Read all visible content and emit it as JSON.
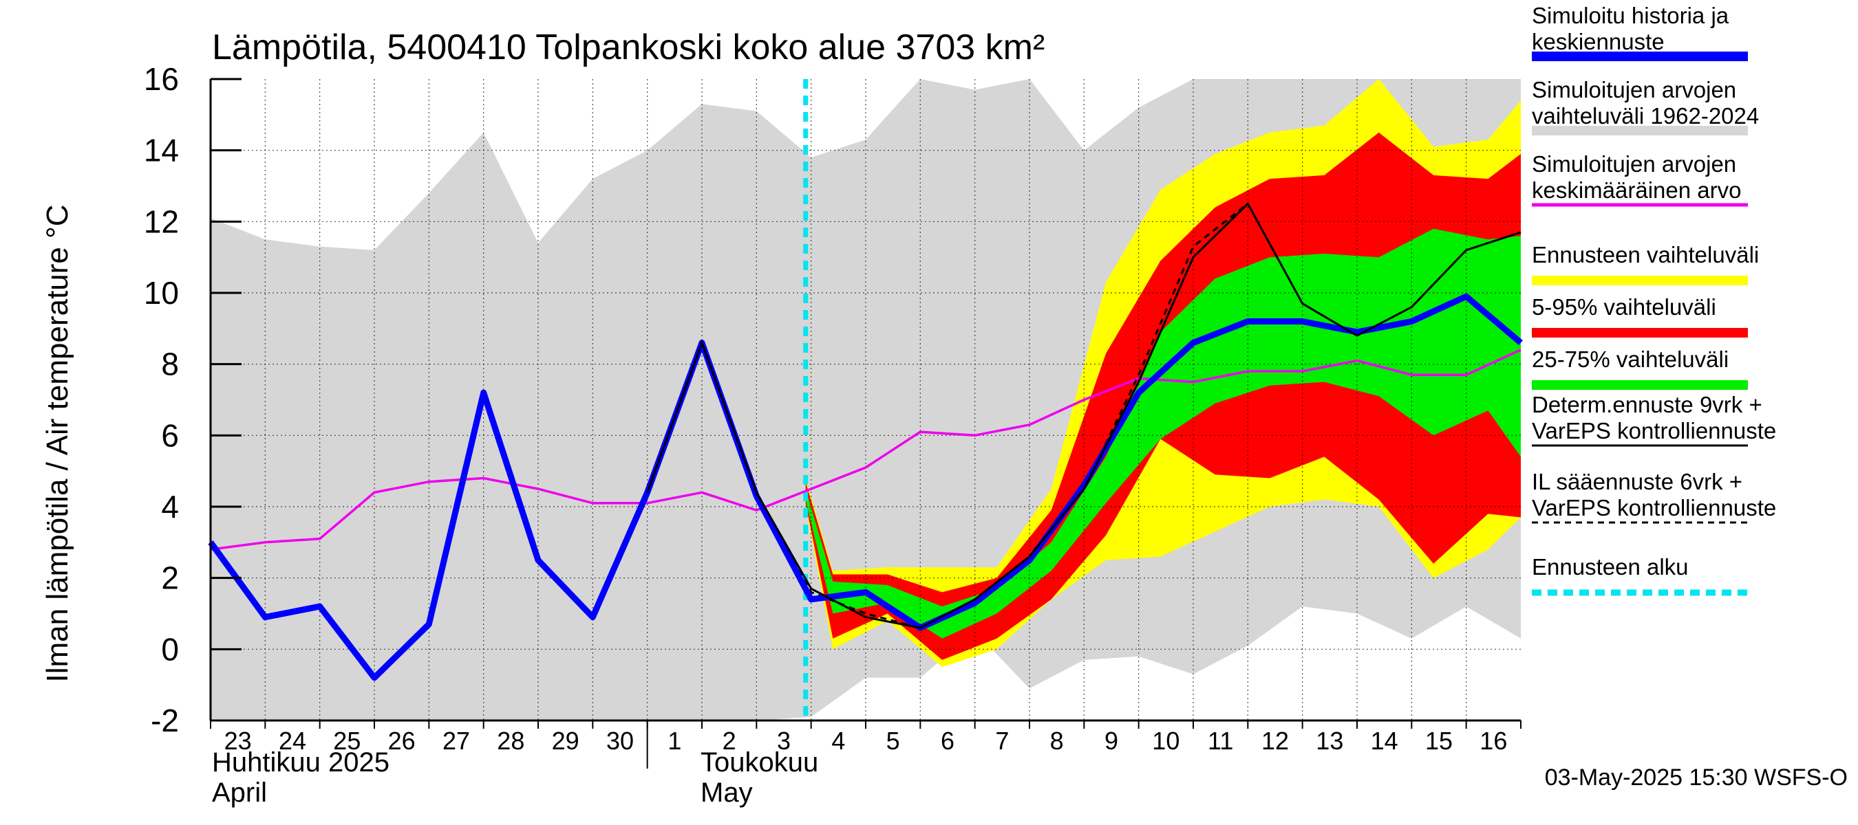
{
  "chart_data": {
    "type": "line",
    "title": "Lämpötila, 5400410 Tolpankoski koko alue 3703 km²",
    "ylabel": "Ilman lämpötila / Air temperature   °C",
    "ylim": [
      -2,
      16
    ],
    "yticks": [
      -2,
      0,
      2,
      4,
      6,
      8,
      10,
      12,
      14,
      16
    ],
    "x_days": [
      23,
      24,
      25,
      26,
      27,
      28,
      29,
      30,
      1,
      2,
      3,
      4,
      5,
      6,
      7,
      8,
      9,
      10,
      11,
      12,
      13,
      14,
      15,
      16
    ],
    "month_labels": {
      "april_fi": "Huhtikuu  2025",
      "april_en": "April",
      "may_fi": "Toukokuu",
      "may_en": "May"
    },
    "forecast_start_index": 10.9,
    "history_range": {
      "x": [
        0,
        1,
        2,
        3,
        4,
        5,
        6,
        7,
        8,
        9,
        10,
        11,
        12,
        13,
        14,
        15,
        16,
        17,
        18,
        19,
        20,
        21,
        22,
        23,
        24
      ],
      "high": [
        12.1,
        11.5,
        11.3,
        11.2,
        12.8,
        14.5,
        11.4,
        13.2,
        14.0,
        15.3,
        15.1,
        13.8,
        14.3,
        16.0,
        15.7,
        16.0,
        14.0,
        15.2,
        16.0,
        16.0,
        16.0,
        16.0,
        16.0,
        16.0,
        16.0
      ],
      "low": [
        -2.0,
        -2.0,
        -2.0,
        -2.0,
        -2.0,
        -2.0,
        -2.0,
        -2.0,
        -2.0,
        -2.0,
        -2.0,
        -1.9,
        -0.8,
        -0.8,
        0.5,
        -1.1,
        -0.3,
        -0.2,
        -0.7,
        0.1,
        1.2,
        1.0,
        0.3,
        1.2,
        0.3
      ]
    },
    "ensemble_range": {
      "x": [
        10.9,
        11.4,
        12.4,
        13.4,
        14.4,
        15.4,
        16.4,
        17.4,
        18.4,
        19.4,
        20.4,
        21.4,
        22.4,
        23.4,
        24.0
      ],
      "high": [
        4.8,
        2.2,
        2.3,
        2.3,
        2.3,
        4.5,
        10.3,
        12.9,
        13.9,
        14.5,
        14.7,
        16.0,
        14.1,
        14.3,
        15.4
      ],
      "low": [
        4.0,
        0.0,
        0.8,
        -0.5,
        0.0,
        1.4,
        2.5,
        2.6,
        3.3,
        4.0,
        4.2,
        4.0,
        2.0,
        2.8,
        3.7
      ]
    },
    "p5_95_range": {
      "x": [
        10.9,
        11.4,
        12.4,
        13.4,
        14.4,
        15.4,
        16.4,
        17.4,
        18.4,
        19.4,
        20.4,
        21.4,
        22.4,
        23.4,
        24.0
      ],
      "high": [
        4.7,
        2.1,
        2.1,
        1.6,
        2.0,
        3.9,
        8.3,
        10.9,
        12.4,
        13.2,
        13.3,
        14.5,
        13.3,
        13.2,
        13.9
      ],
      "low": [
        4.1,
        0.3,
        1.0,
        -0.3,
        0.3,
        1.4,
        3.2,
        5.9,
        4.9,
        4.8,
        5.4,
        4.2,
        2.4,
        3.8,
        3.7
      ]
    },
    "p25_75_range": {
      "x": [
        10.9,
        11.4,
        12.4,
        13.4,
        14.4,
        15.4,
        16.4,
        17.4,
        18.4,
        19.4,
        20.4,
        21.4,
        22.4,
        23.4,
        24.0
      ],
      "high": [
        4.5,
        1.9,
        1.8,
        1.2,
        1.7,
        3.0,
        5.4,
        8.9,
        10.4,
        11.0,
        11.1,
        11.0,
        11.8,
        11.5,
        11.6
      ],
      "low": [
        4.2,
        1.0,
        1.3,
        0.3,
        1.0,
        2.2,
        4.1,
        5.9,
        6.9,
        7.4,
        7.5,
        7.1,
        6.0,
        6.7,
        5.4
      ]
    },
    "series": [
      {
        "name": "Simuloitu historia ja keskiennuste",
        "x": [
          0,
          1,
          2,
          3,
          4,
          5,
          6,
          7,
          8,
          9,
          10,
          11,
          12,
          13,
          14,
          15,
          16,
          17,
          18,
          19,
          20,
          21,
          22,
          23,
          24
        ],
        "values": [
          3.0,
          0.9,
          1.2,
          -0.8,
          0.7,
          7.2,
          2.5,
          0.9,
          4.4,
          8.6,
          4.3,
          1.4,
          1.6,
          0.6,
          1.3,
          2.5,
          4.6,
          7.2,
          8.6,
          9.2,
          9.2,
          8.9,
          9.2,
          9.9,
          8.6
        ],
        "color": "#0000ff"
      },
      {
        "name": "Simuloitujen arvojen keskimääräinen arvo",
        "x": [
          0,
          1,
          2,
          3,
          4,
          5,
          6,
          7,
          8,
          9,
          10,
          11,
          12,
          13,
          14,
          15,
          16,
          17,
          18,
          19,
          20,
          21,
          22,
          23,
          24
        ],
        "values": [
          2.8,
          3.0,
          3.1,
          4.4,
          4.7,
          4.8,
          4.5,
          4.1,
          4.1,
          4.4,
          3.9,
          4.5,
          5.1,
          6.1,
          6.0,
          6.3,
          7.0,
          7.6,
          7.5,
          7.8,
          7.8,
          8.1,
          7.7,
          7.7,
          8.4
        ],
        "color": "#ee00ee"
      },
      {
        "name": "Determ.ennuste 9vrk + VarEPS kontrolliennuste",
        "x": [
          8,
          9,
          10,
          11,
          12,
          13,
          14,
          15,
          16,
          17,
          18,
          19,
          20,
          21,
          22,
          23,
          24
        ],
        "values": [
          4.4,
          8.6,
          4.4,
          1.7,
          0.9,
          0.6,
          1.4,
          2.6,
          4.5,
          7.5,
          11.0,
          12.5,
          9.7,
          8.8,
          9.6,
          11.2,
          11.7
        ],
        "color": "#000000"
      },
      {
        "name": "IL sääennuste 6vrk + VarEPS kontrolliennuste",
        "x": [
          8,
          9,
          10,
          11,
          12,
          13,
          14,
          15,
          16,
          17,
          18,
          19
        ],
        "values": [
          4.4,
          8.6,
          4.4,
          1.6,
          1.0,
          0.6,
          1.4,
          2.6,
          4.5,
          7.7,
          11.3,
          12.5
        ],
        "color": "#000000",
        "style": "dashed"
      }
    ],
    "legend": [
      {
        "line1": "Simuloitu historia ja",
        "line2": "keskiennuste",
        "color": "#0000ff",
        "style": "thick"
      },
      {
        "line1": "Simuloitujen arvojen",
        "line2": "vaihteluväli 1962-2024",
        "color": "#d6d6d6",
        "style": "thick"
      },
      {
        "line1": "Simuloitujen arvojen",
        "line2": "keskimääräinen arvo",
        "color": "#ee00ee",
        "style": "medium"
      },
      {
        "line1": "Ennusteen vaihteluväli",
        "line2": "",
        "color": "#ffff00",
        "style": "thick"
      },
      {
        "line1": "5-95% vaihteluväli",
        "line2": "",
        "color": "#ff0000",
        "style": "thick"
      },
      {
        "line1": "25-75% vaihteluväli",
        "line2": "",
        "color": "#00ee00",
        "style": "thick"
      },
      {
        "line1": "Determ.ennuste 9vrk +",
        "line2": "VarEPS kontrolliennuste",
        "color": "#000000",
        "style": "thin"
      },
      {
        "line1": "IL sääennuste 6vrk  +",
        "line2": "  VarEPS kontrolliennuste",
        "color": "#000000",
        "style": "dashed"
      },
      {
        "line1": "Ennusteen alku",
        "line2": "",
        "color": "#00e5ee",
        "style": "cyan-dashed"
      }
    ],
    "footer": "03-May-2025 15:30 WSFS-O",
    "colors": {
      "history_band": "#d6d6d6",
      "ensemble_band": "#ffff00",
      "p5_95_band": "#ff0000",
      "p25_75_band": "#00ee00",
      "forecast_start": "#00e5ee"
    }
  }
}
